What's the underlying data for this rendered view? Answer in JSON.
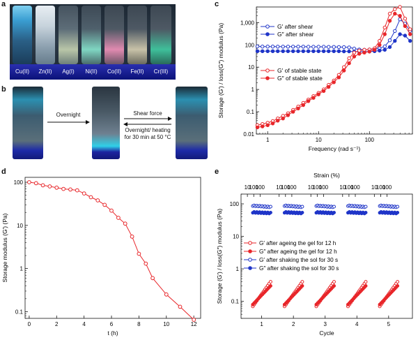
{
  "panels": {
    "a": {
      "letter": "a",
      "labels": [
        "Cu(II)",
        "Zn(II)",
        "Ag(I)",
        "Ni(II)",
        "Co(II)",
        "Fe(II)",
        "Cr(III)"
      ]
    },
    "b": {
      "letter": "b",
      "overnight": "Overnight",
      "shear": "Shear force",
      "reverse": "Overnight/ heating for 30 min at 50 °C"
    },
    "c": {
      "letter": "c"
    },
    "d": {
      "letter": "d"
    },
    "e": {
      "letter": "e"
    }
  },
  "colors": {
    "red": "#e8262a",
    "blue": "#1f35c8"
  },
  "chart_data": [
    {
      "id": "c",
      "type": "line",
      "xscale": "log",
      "yscale": "log",
      "xlabel": "Frequency (rad s⁻¹)",
      "ylabel": "Storage (G′) / loss(G″) modulus (Pa)",
      "xlim": [
        0.6,
        700
      ],
      "ylim": [
        0.01,
        5000
      ],
      "xticks": [
        1,
        10,
        100
      ],
      "xtick_labels": [
        "1",
        "10",
        "100"
      ],
      "yticks": [
        0.01,
        0.1,
        1,
        10,
        100,
        1000
      ],
      "ytick_labels": [
        "0.01",
        "0.1",
        "1",
        "10",
        "100",
        "1,000"
      ],
      "legend": "left",
      "series": [
        {
          "name": "G′ after shear",
          "color": "#1f35c8",
          "marker": "open",
          "x": [
            0.63,
            0.79,
            1,
            1.26,
            1.58,
            2,
            2.51,
            3.16,
            3.98,
            5.01,
            6.31,
            7.94,
            10,
            12.6,
            15.8,
            20,
            25.1,
            31.6,
            39.8,
            50.1,
            63.1,
            79.4,
            100,
            126,
            158,
            200,
            251,
            316,
            398,
            501,
            631
          ],
          "y": [
            85,
            84,
            84,
            84,
            83,
            83,
            83,
            83,
            83,
            83,
            82,
            82,
            82,
            82,
            81,
            81,
            80,
            79,
            77,
            68,
            62,
            60,
            62,
            64,
            70,
            85,
            160,
            420,
            1400,
            900,
            420
          ]
        },
        {
          "name": "G″ after shear",
          "color": "#1f35c8",
          "marker": "filled",
          "x": [
            0.63,
            0.79,
            1,
            1.26,
            1.58,
            2,
            2.51,
            3.16,
            3.98,
            5.01,
            6.31,
            7.94,
            10,
            12.6,
            15.8,
            20,
            25.1,
            31.6,
            39.8,
            50.1,
            63.1,
            79.4,
            100,
            126,
            158,
            200,
            251,
            316,
            398,
            501,
            631
          ],
          "y": [
            52,
            52,
            52,
            52,
            52,
            52,
            52,
            52,
            52,
            52,
            52,
            52,
            52,
            52,
            52,
            52,
            52,
            51,
            51,
            50,
            50,
            49,
            50,
            52,
            55,
            60,
            80,
            150,
            300,
            260,
            150
          ]
        },
        {
          "name": "G′ of stable state",
          "color": "#e8262a",
          "marker": "open",
          "x": [
            0.63,
            0.79,
            1,
            1.26,
            1.58,
            2,
            2.51,
            3.16,
            3.98,
            5.01,
            6.31,
            7.94,
            10,
            12.6,
            15.8,
            20,
            25.1,
            31.6,
            39.8,
            50.1,
            63.1,
            79.4,
            100,
            126,
            158,
            200,
            251,
            316,
            398,
            501,
            631
          ],
          "y": [
            0.025,
            0.028,
            0.032,
            0.038,
            0.05,
            0.065,
            0.085,
            0.12,
            0.17,
            0.25,
            0.35,
            0.5,
            0.7,
            1.0,
            1.6,
            2.5,
            4.5,
            10,
            25,
            45,
            55,
            60,
            62,
            70,
            150,
            600,
            2500,
            4000,
            5000,
            1500,
            500
          ]
        },
        {
          "name": "G″ of stable state",
          "color": "#e8262a",
          "marker": "filled",
          "x": [
            0.63,
            0.79,
            1,
            1.26,
            1.58,
            2,
            2.51,
            3.16,
            3.98,
            5.01,
            6.31,
            7.94,
            10,
            12.6,
            15.8,
            20,
            25.1,
            31.6,
            39.8,
            50.1,
            63.1,
            79.4,
            100,
            126,
            158,
            200,
            251,
            316,
            398,
            501,
            631
          ],
          "y": [
            0.02,
            0.022,
            0.025,
            0.03,
            0.04,
            0.05,
            0.07,
            0.1,
            0.14,
            0.2,
            0.3,
            0.42,
            0.6,
            0.85,
            1.3,
            2.1,
            3.5,
            7,
            15,
            30,
            40,
            45,
            50,
            60,
            100,
            300,
            1200,
            2500,
            2000,
            700,
            300
          ]
        }
      ]
    },
    {
      "id": "d",
      "type": "line",
      "yscale": "log",
      "xlabel": "t (h)",
      "ylabel": "Storage modulus (G′) (Pa)",
      "xlim": [
        -0.3,
        12.5
      ],
      "ylim": [
        0.07,
        130
      ],
      "xticks": [
        0,
        2,
        4,
        6,
        8,
        10,
        12
      ],
      "xtick_labels": [
        "0",
        "2",
        "4",
        "6",
        "8",
        "10",
        "12"
      ],
      "yticks": [
        0.1,
        1,
        10,
        100
      ],
      "ytick_labels": [
        "0.1",
        "1",
        "10",
        "100"
      ],
      "series": [
        {
          "color": "#e8262a",
          "marker": "open",
          "x": [
            0,
            0.5,
            1,
            1.5,
            2,
            2.5,
            3,
            3.5,
            4,
            4.5,
            5,
            5.5,
            6,
            6.5,
            7,
            7.5,
            8,
            8.5,
            9,
            10,
            11,
            12
          ],
          "y": [
            100,
            95,
            85,
            80,
            75,
            70,
            68,
            65,
            55,
            45,
            38,
            30,
            22,
            15,
            11,
            5.5,
            2.2,
            1.3,
            0.6,
            0.25,
            0.13,
            0.065
          ]
        }
      ]
    },
    {
      "id": "e",
      "type": "scatter",
      "yscale": "log",
      "xlabel": "Cycle",
      "ylabel": "Storage (G′) / loss(G″) modulus (Pa)",
      "top_xlabel": "Strain (%)",
      "xlim": [
        0.35,
        5.75
      ],
      "ylim": [
        0.03,
        200
      ],
      "xticks": [
        1,
        2,
        3,
        4,
        5
      ],
      "xtick_labels": [
        "1",
        "2",
        "3",
        "4",
        "5"
      ],
      "yticks": [
        0.1,
        1,
        10,
        100
      ],
      "ytick_labels": [
        "0.1",
        "1",
        "10",
        "100"
      ],
      "top_ticks": [
        0.55,
        0.75,
        0.95,
        1.55,
        1.75,
        1.95,
        2.55,
        2.75,
        2.95,
        3.55,
        3.75,
        3.95,
        4.55,
        4.75,
        4.95
      ],
      "top_tick_labels": [
        "10",
        "100",
        "100",
        "10",
        "100",
        "100",
        "10",
        "100",
        "100",
        "10",
        "100",
        "100",
        "10",
        "100",
        "100"
      ],
      "legend": "left",
      "cycles": [
        1,
        2,
        3,
        4,
        5
      ],
      "series": [
        {
          "name": "G′ after ageing the gel for 12 h",
          "color": "#e8262a",
          "marker": "open",
          "kind": "ramp",
          "y_start": 0.07,
          "y_end": 0.4
        },
        {
          "name": "G″ after ageing the gel for 12 h",
          "color": "#e8262a",
          "marker": "filled",
          "kind": "ramp",
          "y_start": 0.08,
          "y_end": 0.3
        },
        {
          "name": "G′ after shaking the sol for 30 s",
          "color": "#1f35c8",
          "marker": "open",
          "kind": "flat",
          "y_start": 88,
          "y_end": 80
        },
        {
          "name": "G″ after shaking the sol for 30 s",
          "color": "#1f35c8",
          "marker": "filled",
          "kind": "flat",
          "y_start": 55,
          "y_end": 52
        }
      ]
    }
  ]
}
